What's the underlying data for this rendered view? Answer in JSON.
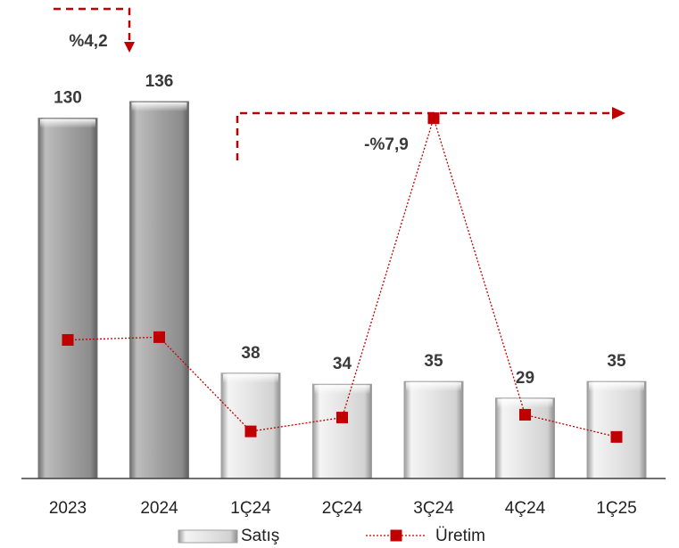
{
  "chart_data": {
    "type": "bar",
    "categories": [
      "2023",
      "2024",
      "1Ç24",
      "2Ç24",
      "3Ç24",
      "4Ç24",
      "1Ç25"
    ],
    "series": [
      {
        "name": "Satış",
        "type": "bar",
        "values": [
          130,
          136,
          38,
          34,
          35,
          29,
          35
        ]
      },
      {
        "name": "Üretim",
        "type": "line",
        "values": [
          50,
          51,
          17,
          22,
          130,
          23,
          15
        ]
      }
    ],
    "ylim": [
      0,
      145
    ],
    "grid": false,
    "legend": "bottom",
    "annotations": [
      {
        "text": "%4,2",
        "from": "2023",
        "to": "2024",
        "direction": "down"
      },
      {
        "text": "-%7,9",
        "from": "1Ç24",
        "to": "1Ç25",
        "direction": "right"
      }
    ],
    "colors": {
      "annual_bar": "#a8a8a8",
      "quarter_bar": "#e6e6e6",
      "line": "#c00000"
    }
  }
}
